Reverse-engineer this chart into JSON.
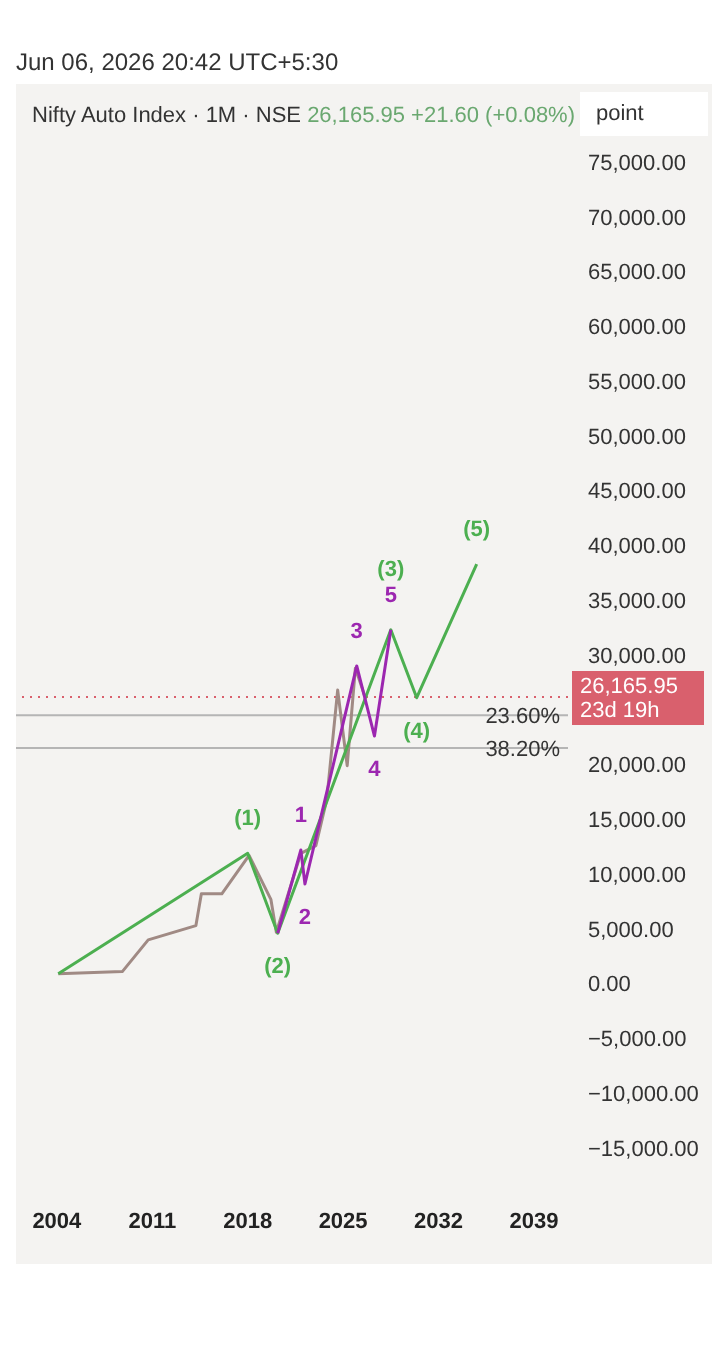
{
  "chart_data": {
    "type": "line",
    "title": "Nifty Auto Index · 1M · NSE",
    "subtitle": "26,165.95 +21.60 (+0.08%)",
    "ylabel": "point",
    "annotations": [
      "Jun 06, 2026 20:42 UTC+5:30",
      {
        "text": "(1)",
        "x": 2018.0,
        "y": 11900
      },
      {
        "text": "(2)",
        "x": 2020.2,
        "y": 4600
      },
      {
        "text": "(3)",
        "x": 2028.5,
        "y": 32300
      },
      {
        "text": "(4)",
        "x": 2030.4,
        "y": 26100
      },
      {
        "text": "(5)",
        "x": 2034.8,
        "y": 38300
      },
      {
        "text": "1",
        "x": 2021.9,
        "y": 12200
      },
      {
        "text": "2",
        "x": 2022.2,
        "y": 9100
      },
      {
        "text": "3",
        "x": 2026.0,
        "y": 29000
      },
      {
        "text": "4",
        "x": 2027.3,
        "y": 22600
      },
      {
        "text": "5",
        "x": 2028.5,
        "y": 32300
      },
      {
        "text": "23.60%",
        "y": 24500
      },
      {
        "text": "38.20%",
        "y": 21500
      }
    ],
    "xlim": [
      2001,
      2041.5
    ],
    "xticks": [
      2004,
      2011,
      2018,
      2025,
      2032,
      2039
    ],
    "ylim": [
      -15000,
      75000
    ],
    "yticks": [
      {
        "value": -15000,
        "label": "−15,000.00"
      },
      {
        "value": -10000,
        "label": "−10,000.00"
      },
      {
        "value": -5000,
        "label": "−5,000.00"
      },
      {
        "value": 0,
        "label": "0.00"
      },
      {
        "value": 5000,
        "label": "5,000.00"
      },
      {
        "value": 10000,
        "label": "10,000.00"
      },
      {
        "value": 15000,
        "label": "15,000.00"
      },
      {
        "value": 20000,
        "label": "20,000.00"
      },
      {
        "value": 25000,
        "label": null
      },
      {
        "value": 30000,
        "label": "30,000.00"
      },
      {
        "value": 35000,
        "label": "35,000.00"
      },
      {
        "value": 40000,
        "label": "40,000.00"
      },
      {
        "value": 45000,
        "label": "45,000.00"
      },
      {
        "value": 50000,
        "label": "50,000.00"
      },
      {
        "value": 55000,
        "label": "55,000.00"
      },
      {
        "value": 60000,
        "label": "60,000.00"
      },
      {
        "value": 65000,
        "label": "65,000.00"
      },
      {
        "value": 70000,
        "label": "70,000.00"
      },
      {
        "value": 75000,
        "label": "75,000.00"
      }
    ],
    "grid": false,
    "legend": false,
    "marker": "none",
    "series": [
      {
        "color": "#a08a84",
        "x": [
          2004.1,
          2008.8,
          2010.7,
          2014.2,
          2014.6,
          2016.1,
          2018.1,
          2019.7,
          2020.1,
          2021.9,
          2023.0,
          2023.8,
          2024.6,
          2025.3,
          2025.9,
          2026.6
        ],
        "values": [
          900,
          1100,
          4000,
          5300,
          8200,
          8200,
          11700,
          7700,
          4700,
          11900,
          12600,
          16800,
          26800,
          19900,
          28800,
          26200
        ]
      },
      {
        "color": "#4caf50",
        "x": [
          2004.1,
          2018.0,
          2020.2,
          2028.5,
          2030.4,
          2034.8
        ],
        "values": [
          900,
          11900,
          4600,
          32300,
          26100,
          38300
        ]
      },
      {
        "color": "#9c27b0",
        "x": [
          2020.2,
          2021.9,
          2022.2,
          2026.0,
          2027.3,
          2028.5
        ],
        "values": [
          4600,
          12200,
          9100,
          29000,
          22600,
          32300
        ]
      }
    ],
    "ref_lines": [
      {
        "axis": "y",
        "value": 26165.95,
        "label": "26,165.95\n23d 19h",
        "color": "#d9606d",
        "line_style": "dotted"
      },
      {
        "axis": "y",
        "value": 24500,
        "color": "#b5b5b5",
        "line_style": "solid"
      },
      {
        "axis": "y",
        "value": 21500,
        "color": "#b5b5b5",
        "line_style": "solid"
      }
    ]
  }
}
